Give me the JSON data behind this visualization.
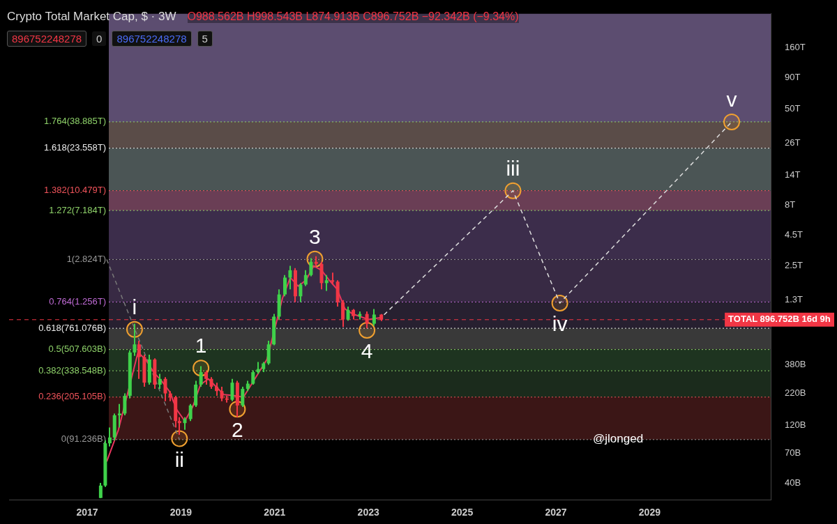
{
  "chart_data": {
    "type": "candlestick",
    "title": "Crypto Total Market Cap, $ · 3W",
    "x": [
      "2017-04-15",
      "2017-05-20",
      "2017-06-25",
      "2017-08-01",
      "2017-09-10",
      "2017-10-20",
      "2017-11-30",
      "2018-01-05",
      "2018-02-10",
      "2018-03-20",
      "2018-04-30",
      "2018-06-10",
      "2018-07-20",
      "2018-09-01",
      "2018-10-10",
      "2018-11-20",
      "2018-12-20",
      "2019-02-01",
      "2019-03-15",
      "2019-04-25",
      "2019-06-05",
      "2019-07-15",
      "2019-08-25",
      "2019-10-05",
      "2019-11-15",
      "2019-12-25",
      "2020-02-05",
      "2020-03-15",
      "2020-04-25",
      "2020-06-05",
      "2020-07-15",
      "2020-08-25",
      "2020-10-05",
      "2020-11-15",
      "2020-12-25",
      "2021-02-05",
      "2021-03-20",
      "2021-04-30",
      "2021-06-10",
      "2021-07-20",
      "2021-08-30",
      "2021-10-10",
      "2021-11-20",
      "2022-01-01",
      "2022-02-10",
      "2022-03-25",
      "2022-05-05",
      "2022-06-15",
      "2022-07-25",
      "2022-09-05",
      "2022-10-25",
      "2022-12-20",
      "2023-02-15",
      "2023-04-10"
    ],
    "ohlc": [
      [
        30000000000.0,
        40000000000.0,
        30000000000.0,
        38000000000.0
      ],
      [
        38000000000.0,
        90000000000.0,
        37000000000.0,
        85000000000.0
      ],
      [
        85000000000.0,
        115000000000.0,
        80000000000.0,
        95000000000.0
      ],
      [
        95000000000.0,
        150000000000.0,
        90000000000.0,
        145000000000.0
      ],
      [
        145000000000.0,
        180000000000.0,
        115000000000.0,
        150000000000.0
      ],
      [
        150000000000.0,
        220000000000.0,
        145000000000.0,
        210000000000.0
      ],
      [
        210000000000.0,
        500000000000.0,
        200000000000.0,
        480000000000.0
      ],
      [
        480000000000.0,
        830000000000.0,
        450000000000.0,
        560000000000.0
      ],
      [
        560000000000.0,
        600000000000.0,
        290000000000.0,
        440000000000.0
      ],
      [
        440000000000.0,
        460000000000.0,
        250000000000.0,
        270000000000.0
      ],
      [
        270000000000.0,
        460000000000.0,
        260000000000.0,
        420000000000.0
      ],
      [
        420000000000.0,
        430000000000.0,
        240000000000.0,
        260000000000.0
      ],
      [
        260000000000.0,
        320000000000.0,
        240000000000.0,
        290000000000.0
      ],
      [
        290000000000.0,
        300000000000.0,
        190000000000.0,
        220000000000.0
      ],
      [
        220000000000.0,
        230000000000.0,
        190000000000.0,
        205000000000.0
      ],
      [
        205000000000.0,
        210000000000.0,
        115000000000.0,
        130000000000.0
      ],
      [
        130000000000.0,
        140000000000.0,
        100000000000.0,
        125000000000.0
      ],
      [
        125000000000.0,
        140000000000.0,
        110000000000.0,
        135000000000.0
      ],
      [
        135000000000.0,
        180000000000.0,
        130000000000.0,
        175000000000.0
      ],
      [
        175000000000.0,
        280000000000.0,
        170000000000.0,
        260000000000.0
      ],
      [
        260000000000.0,
        370000000000.0,
        250000000000.0,
        330000000000.0
      ],
      [
        330000000000.0,
        340000000000.0,
        260000000000.0,
        290000000000.0
      ],
      [
        290000000000.0,
        300000000000.0,
        240000000000.0,
        250000000000.0
      ],
      [
        250000000000.0,
        270000000000.0,
        210000000000.0,
        230000000000.0
      ],
      [
        230000000000.0,
        250000000000.0,
        190000000000.0,
        200000000000.0
      ],
      [
        200000000000.0,
        210000000000.0,
        185000000000.0,
        195000000000.0
      ],
      [
        195000000000.0,
        290000000000.0,
        190000000000.0,
        270000000000.0
      ],
      [
        270000000000.0,
        280000000000.0,
        140000000000.0,
        175000000000.0
      ],
      [
        175000000000.0,
        250000000000.0,
        170000000000.0,
        240000000000.0
      ],
      [
        240000000000.0,
        280000000000.0,
        230000000000.0,
        265000000000.0
      ],
      [
        265000000000.0,
        340000000000.0,
        260000000000.0,
        330000000000.0
      ],
      [
        330000000000.0,
        400000000000.0,
        320000000000.0,
        350000000000.0
      ],
      [
        350000000000.0,
        400000000000.0,
        330000000000.0,
        390000000000.0
      ],
      [
        390000000000.0,
        600000000000.0,
        380000000000.0,
        560000000000.0
      ],
      [
        560000000000.0,
        1000000000000.0,
        550000000000.0,
        950000000000.0
      ],
      [
        950000000000.0,
        1600000000000.0,
        900000000000.0,
        1450000000000.0
      ],
      [
        1450000000000.0,
        2100000000000.0,
        1400000000000.0,
        2000000000000.0
      ],
      [
        2000000000000.0,
        2500000000000.0,
        1600000000000.0,
        2300000000000.0
      ],
      [
        2300000000000.0,
        2400000000000.0,
        1250000000000.0,
        1400000000000.0
      ],
      [
        1400000000000.0,
        1800000000000.0,
        1250000000000.0,
        1750000000000.0
      ],
      [
        1750000000000.0,
        2300000000000.0,
        1700000000000.0,
        2100000000000.0
      ],
      [
        2100000000000.0,
        2900000000000.0,
        2050000000000.0,
        2700000000000.0
      ],
      [
        2700000000000.0,
        3000000000000.0,
        2500000000000.0,
        2600000000000.0
      ],
      [
        2600000000000.0,
        2700000000000.0,
        1600000000000.0,
        1800000000000.0
      ],
      [
        1800000000000.0,
        2100000000000.0,
        1550000000000.0,
        1900000000000.0
      ],
      [
        1900000000000.0,
        2200000000000.0,
        1750000000000.0,
        1850000000000.0
      ],
      [
        1850000000000.0,
        1900000000000.0,
        1150000000000.0,
        1250000000000.0
      ],
      [
        1250000000000.0,
        1300000000000.0,
        780000000000.0,
        900000000000.0
      ],
      [
        900000000000.0,
        1150000000000.0,
        880000000000.0,
        1080000000000.0
      ],
      [
        1080000000000.0,
        1100000000000.0,
        900000000000.0,
        960000000000.0
      ],
      [
        960000000000.0,
        1050000000000.0,
        900000000000.0,
        1000000000000.0
      ],
      [
        1000000000000.0,
        1050000000000.0,
        760000000000.0,
        830000000000.0
      ],
      [
        830000000000.0,
        1100000000000.0,
        800000000000.0,
        988562000000.0
      ],
      [
        988562000000.0,
        998543000000.0,
        874913000000.0,
        896752000000.0
      ]
    ],
    "colors": [
      "#3fd14a",
      "#3fd14a",
      "#3fd14a",
      "#3fd14a",
      "#3fd14a",
      "#3fd14a",
      "#3fd14a",
      "#3fd14a",
      "#f23645",
      "#f23645",
      "#3fd14a",
      "#f23645",
      "#3fd14a",
      "#f23645",
      "#f23645",
      "#f23645",
      "#f23645",
      "#3fd14a",
      "#3fd14a",
      "#3fd14a",
      "#3fd14a",
      "#f23645",
      "#f23645",
      "#f23645",
      "#f23645",
      "#f23645",
      "#3fd14a",
      "#f23645",
      "#3fd14a",
      "#3fd14a",
      "#3fd14a",
      "#3fd14a",
      "#3fd14a",
      "#3fd14a",
      "#3fd14a",
      "#3fd14a",
      "#3fd14a",
      "#3fd14a",
      "#f23645",
      "#3fd14a",
      "#3fd14a",
      "#3fd14a",
      "#f23645",
      "#f23645",
      "#3fd14a",
      "#f23645",
      "#f23645",
      "#f23645",
      "#3fd14a",
      "#f23645",
      "#3fd14a",
      "#f23645",
      "#3fd14a",
      "#f23645"
    ],
    "series": [
      {
        "type": "line",
        "color": "#e8365d",
        "x": [
          "2017-06",
          "2017-09",
          "2018-02",
          "2018-04",
          "2018-06",
          "2018-08",
          "2018-10",
          "2018-12",
          "2019-02",
          "2019-04",
          "2019-06",
          "2019-08",
          "2019-10",
          "2019-12",
          "2020-03",
          "2020-05",
          "2020-07",
          "2020-09",
          "2020-11",
          "2021-01",
          "2021-03",
          "2021-05",
          "2021-07",
          "2021-09",
          "2021-11",
          "2022-01",
          "2022-03",
          "2022-05",
          "2022-07",
          "2022-09",
          "2022-11",
          "2023-01",
          "2023-04"
        ],
        "values": [
          60000000000.0,
          110000000000.0,
          480000000000.0,
          420000000000.0,
          330000000000.0,
          280000000000.0,
          230000000000.0,
          160000000000.0,
          130000000000.0,
          170000000000.0,
          260000000000.0,
          290000000000.0,
          250000000000.0,
          215000000000.0,
          210000000000.0,
          205000000000.0,
          260000000000.0,
          330000000000.0,
          420000000000.0,
          750000000000.0,
          1350000000000.0,
          2000000000000.0,
          1700000000000.0,
          1900000000000.0,
          2500000000000.0,
          2300000000000.0,
          1900000000000.0,
          1600000000000.0,
          1100000000000.0,
          1000000000000.0,
          950000000000.0,
          900000000000.0,
          930000000000.0
        ]
      },
      {
        "type": "line",
        "color": "#dddddd",
        "line_style": "dashed",
        "x": [
          "2023-05",
          "2026-02",
          "2027-02",
          "2030-10"
        ],
        "values": [
          984000000000.0,
          10479000000000.0,
          1230000000000.0,
          38885000000000.0
        ]
      },
      {
        "type": "line",
        "color": "#777777",
        "line_style": "dashed",
        "x": [
          "2017-06",
          "2018-12-20"
        ],
        "values": [
          2824000000000.0,
          91236000000.0
        ]
      },
      {
        "type": "scatter",
        "color": "#f0a030",
        "marker": "circle",
        "x": [
          "2018-01-05",
          "2018-12-20",
          "2019-06-05",
          "2020-03-15",
          "2021-11-10",
          "2022-12-20",
          "2026-02",
          "2027-02",
          "2030-10"
        ],
        "values": [
          745000000000.0,
          93000000000.0,
          357000000000.0,
          163000000000.0,
          2850000000000.0,
          733000000000.0,
          10479000000000.0,
          1230000000000.0,
          38885000000000.0
        ]
      }
    ],
    "xlim": [
      "2015-05",
      "2031-08"
    ],
    "xticks": [
      "2017",
      "2019",
      "2021",
      "2023",
      "2025",
      "2027",
      "2029"
    ],
    "log": "y",
    "ylim": [
      29000000000.0,
      305000000000000.0
    ],
    "yticks": [
      {
        "value": 40000000000.0,
        "label": "40B"
      },
      {
        "value": 70000000000.0,
        "label": "70B"
      },
      {
        "value": 120000000000.0,
        "label": "120B"
      },
      {
        "value": 220000000000.0,
        "label": "220B"
      },
      {
        "value": 380000000000.0,
        "label": "380B"
      },
      {
        "value": 1300000000000.0,
        "label": "1.3T"
      },
      {
        "value": 2500000000000.0,
        "label": "2.5T"
      },
      {
        "value": 4500000000000.0,
        "label": "4.5T"
      },
      {
        "value": 8000000000000.0,
        "label": "8T"
      },
      {
        "value": 14000000000000.0,
        "label": "14T"
      },
      {
        "value": 26000000000000.0,
        "label": "26T"
      },
      {
        "value": 50000000000000.0,
        "label": "50T"
      },
      {
        "value": 90000000000000.0,
        "label": "90T"
      },
      {
        "value": 160000000000000.0,
        "label": "160T"
      }
    ],
    "bands": [
      {
        "axis": "y",
        "from": 38885000000000.0,
        "to": 305000000000000.0,
        "color": "#5c4d70"
      },
      {
        "axis": "y",
        "from": 23558000000000.0,
        "to": 38885000000000.0,
        "color": "#5a4c48"
      },
      {
        "axis": "y",
        "from": 10479000000000.0,
        "to": 23558000000000.0,
        "color": "#4b5555"
      },
      {
        "axis": "y",
        "from": 7184000000000.0,
        "to": 10479000000000.0,
        "color": "#6a3e55"
      },
      {
        "axis": "y",
        "from": 2824000000000.0,
        "to": 7184000000000.0,
        "color": "#3c2d4b"
      },
      {
        "axis": "y",
        "from": 1256000000000.0,
        "to": 2824000000000.0,
        "color": "#382a44"
      },
      {
        "axis": "y",
        "from": 761076000000.0,
        "to": 1256000000000.0,
        "color": "#272030"
      },
      {
        "axis": "y",
        "from": 507603000000.0,
        "to": 761076000000.0,
        "color": "#393939"
      },
      {
        "axis": "y",
        "from": 338548000000.0,
        "to": 507603000000.0,
        "color": "#1e3420"
      },
      {
        "axis": "y",
        "from": 205105000000.0,
        "to": 338548000000.0,
        "color": "#1b2b1c"
      },
      {
        "axis": "y",
        "from": 91236000000.0,
        "to": 205105000000.0,
        "color": "#3b1616"
      }
    ],
    "ref_lines": [
      {
        "axis": "y",
        "value": 38885000000000.0,
        "label": "1.764(38.885T)",
        "color": "#8fd36a",
        "line_style": "dotted"
      },
      {
        "axis": "y",
        "value": 23558000000000.0,
        "label": "1.618(23.558T)",
        "color": "#eeeeee",
        "line_style": "dotted"
      },
      {
        "axis": "y",
        "value": 10479000000000.0,
        "label": "1.382(10.479T)",
        "color": "#f2545b",
        "line_style": "dotted"
      },
      {
        "axis": "y",
        "value": 7184000000000.0,
        "label": "1.272(7.184T)",
        "color": "#8fd36a",
        "line_style": "dotted"
      },
      {
        "axis": "y",
        "value": 2824000000000.0,
        "label": "1(2.824T)",
        "color": "#9a9a9a",
        "line_style": "dotted"
      },
      {
        "axis": "y",
        "value": 1256000000000.0,
        "label": "0.764(1.256T)",
        "color": "#c06bd6",
        "line_style": "dotted"
      },
      {
        "axis": "y",
        "value": 761076000000.0,
        "label": "0.618(761.076B)",
        "color": "#eeeeee",
        "line_style": "dotted"
      },
      {
        "axis": "y",
        "value": 507603000000.0,
        "label": "0.5(507.603B)",
        "color": "#8fd36a",
        "line_style": "dotted"
      },
      {
        "axis": "y",
        "value": 338548000000.0,
        "label": "0.382(338.548B)",
        "color": "#8fd36a",
        "line_style": "dotted"
      },
      {
        "axis": "y",
        "value": 205105000000.0,
        "label": "0.236(205.105B)",
        "color": "#f2545b",
        "line_style": "dotted"
      },
      {
        "axis": "y",
        "value": 91236000000.0,
        "label": "0(91.236B)",
        "color": "#9a9a9a",
        "line_style": "dotted"
      },
      {
        "axis": "y",
        "value": 896752000000.0,
        "label": "TOTAL 896.752B 16d 9h",
        "color": "#f23645",
        "line_style": "dashed"
      }
    ],
    "annotations": [
      "O988.562B H998.543B L874.913B C896.752B −92.342B (−9.34%)",
      "896752248278",
      "0",
      "896752248278",
      "5",
      "@jlonged",
      {
        "text": "i",
        "x": "2018-01-05",
        "y": 745000000000.0
      },
      {
        "text": "ii",
        "x": "2018-12-20",
        "y": 93000000000.0
      },
      {
        "text": "1",
        "x": "2019-06-05",
        "y": 357000000000.0
      },
      {
        "text": "2",
        "x": "2020-03-15",
        "y": 163000000000.0
      },
      {
        "text": "3",
        "x": "2021-11-10",
        "y": 2850000000000.0
      },
      {
        "text": "4",
        "x": "2022-12-20",
        "y": 733000000000.0
      },
      {
        "text": "iii",
        "x": "2026-02",
        "y": 10479000000000.0
      },
      {
        "text": "iv",
        "x": "2027-02",
        "y": 1230000000000.0
      },
      {
        "text": "v",
        "x": "2030-10",
        "y": 38885000000000.0
      }
    ],
    "grid": false,
    "legend": false
  }
}
